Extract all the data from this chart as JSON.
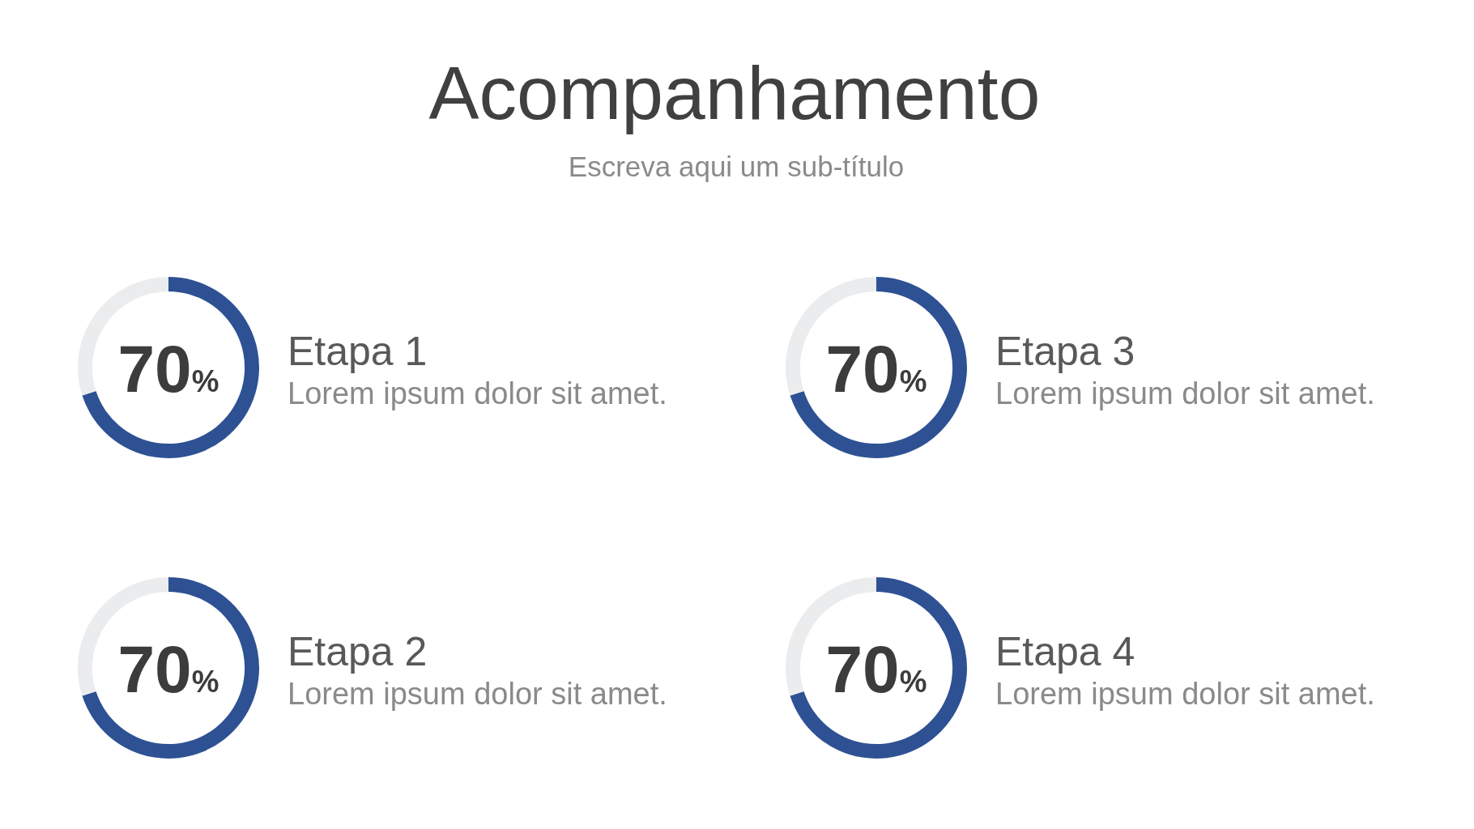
{
  "chart_data": [
    {
      "type": "other",
      "title": "Acompanhamento",
      "subtitle": "Escreva aqui um sub-título"
    },
    {
      "type": "donut",
      "title": "Etapa 1",
      "subtitle": "Lorem ipsum dolor sit amet.",
      "categories": [
        null,
        null
      ],
      "values": [
        70,
        30
      ],
      "colors": [
        "#2d5193",
        "#ebecee"
      ],
      "value_labels": [
        "70%",
        null
      ]
    },
    {
      "type": "donut",
      "title": "Etapa 3",
      "subtitle": "Lorem ipsum dolor sit amet.",
      "categories": [
        null,
        null
      ],
      "values": [
        70,
        30
      ],
      "colors": [
        "#2d5193",
        "#ebecee"
      ],
      "value_labels": [
        "70%",
        null
      ]
    },
    {
      "type": "donut",
      "title": "Etapa 2",
      "subtitle": "Lorem ipsum dolor sit amet.",
      "categories": [
        null,
        null
      ],
      "values": [
        70,
        30
      ],
      "colors": [
        "#2d5193",
        "#ebecee"
      ],
      "value_labels": [
        "70%",
        null
      ]
    },
    {
      "type": "donut",
      "title": "Etapa 4",
      "subtitle": "Lorem ipsum dolor sit amet.",
      "categories": [
        null,
        null
      ],
      "values": [
        70,
        30
      ],
      "colors": [
        "#2d5193",
        "#ebecee"
      ],
      "value_labels": [
        "70%",
        null
      ]
    }
  ]
}
